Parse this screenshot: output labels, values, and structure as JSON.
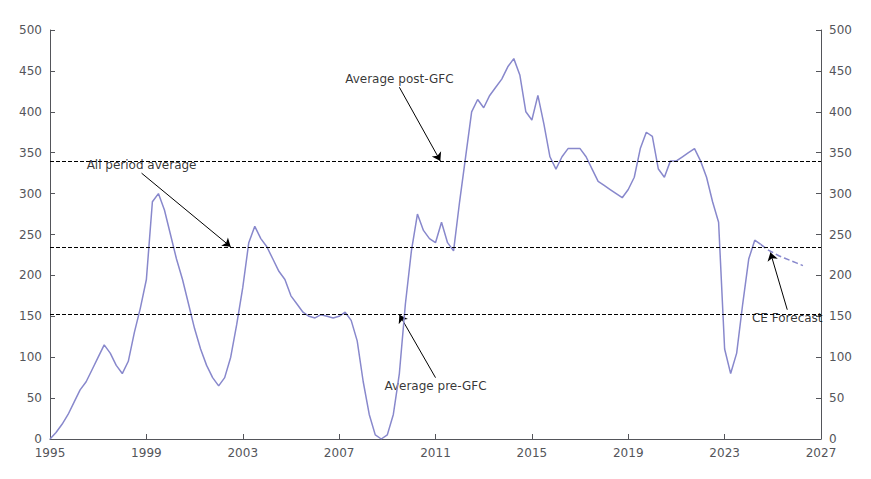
{
  "chart_data": {
    "type": "line",
    "background_color": "#ffffff",
    "xlim": [
      1995,
      2027
    ],
    "xticks": [
      1995,
      1999,
      2003,
      2007,
      2011,
      2015,
      2019,
      2023,
      2027
    ],
    "ylim": [
      0,
      500
    ],
    "yticks": [
      0,
      50,
      100,
      150,
      200,
      250,
      300,
      350,
      400,
      450,
      500
    ],
    "y2lim": [
      0,
      500
    ],
    "y2ticks": [
      0,
      50,
      100,
      150,
      200,
      250,
      300,
      350,
      400,
      450,
      500
    ],
    "grid": false,
    "series": [
      {
        "color": "#8888cc",
        "line_style": "solid",
        "x": [
          1995.0,
          1995.25,
          1995.5,
          1995.75,
          1996.0,
          1996.25,
          1996.5,
          1996.75,
          1997.0,
          1997.25,
          1997.5,
          1997.75,
          1998.0,
          1998.25,
          1998.5,
          1998.75,
          1999.0,
          1999.25,
          1999.5,
          1999.75,
          2000.0,
          2000.25,
          2000.5,
          2000.75,
          2001.0,
          2001.25,
          2001.5,
          2001.75,
          2002.0,
          2002.25,
          2002.5,
          2002.75,
          2003.0,
          2003.25,
          2003.5,
          2003.75,
          2004.0,
          2004.25,
          2004.5,
          2004.75,
          2005.0,
          2005.25,
          2005.5,
          2005.75,
          2006.0,
          2006.25,
          2006.5,
          2006.75,
          2007.0,
          2007.25,
          2007.5,
          2007.75,
          2008.0,
          2008.25,
          2008.5,
          2008.75,
          2009.0,
          2009.25,
          2009.5,
          2009.75,
          2010.0,
          2010.25,
          2010.5,
          2010.75,
          2011.0,
          2011.25,
          2011.5,
          2011.75,
          2012.0,
          2012.25,
          2012.5,
          2012.75,
          2013.0,
          2013.25,
          2013.5,
          2013.75,
          2014.0,
          2014.25,
          2014.5,
          2014.75,
          2015.0,
          2015.25,
          2015.5,
          2015.75,
          2016.0,
          2016.25,
          2016.5,
          2016.75,
          2017.0,
          2017.25,
          2017.5,
          2017.75,
          2018.0,
          2018.25,
          2018.5,
          2018.75,
          2019.0,
          2019.25,
          2019.5,
          2019.75,
          2020.0,
          2020.25,
          2020.5,
          2020.75,
          2021.0,
          2021.25,
          2021.5,
          2021.75,
          2022.0,
          2022.25,
          2022.5,
          2022.75,
          2023.0,
          2023.25,
          2023.5,
          2023.75,
          2024.0,
          2024.25,
          2024.5
        ],
        "values": [
          0,
          8,
          18,
          30,
          45,
          60,
          70,
          85,
          100,
          115,
          105,
          90,
          80,
          95,
          130,
          160,
          195,
          290,
          300,
          280,
          250,
          220,
          195,
          165,
          135,
          110,
          90,
          75,
          65,
          75,
          100,
          140,
          185,
          240,
          260,
          245,
          235,
          220,
          205,
          195,
          175,
          165,
          155,
          150,
          148,
          152,
          150,
          148,
          150,
          155,
          145,
          120,
          70,
          30,
          5,
          0,
          5,
          30,
          80,
          165,
          230,
          275,
          255,
          245,
          240,
          265,
          240,
          230,
          290,
          345,
          400,
          415,
          405,
          420,
          430,
          440,
          455,
          465,
          445,
          400,
          390,
          420,
          385,
          345,
          330,
          345,
          355,
          355,
          355,
          345,
          330,
          315,
          310,
          305,
          300,
          295,
          305,
          320,
          355,
          375,
          370,
          330,
          320,
          340,
          340,
          345,
          350,
          355,
          340,
          320,
          290,
          265,
          110,
          80,
          105,
          165,
          220,
          243,
          238
        ]
      },
      {
        "color": "#8888cc",
        "line_style": "dashed",
        "x": [
          2024.5,
          2024.75,
          2025.0,
          2025.25,
          2025.5,
          2025.75,
          2026.0,
          2026.25
        ],
        "values": [
          238,
          232,
          228,
          224,
          221,
          218,
          215,
          212
        ]
      }
    ],
    "reference_lines": [
      {
        "y": 152,
        "color": "#000000",
        "line_style": "dashed"
      },
      {
        "y": 340,
        "color": "#000000",
        "line_style": "dashed"
      },
      {
        "y": 235,
        "color": "#000000",
        "line_style": "dashed"
      }
    ],
    "annotations": [
      {
        "text": "Average post-GFC",
        "x": 2011.2,
        "y": 340,
        "text_x": 2009.5,
        "text_y": 430,
        "color": "#000000"
      },
      {
        "text": "All period average",
        "x": 2002.5,
        "y": 235,
        "text_x": 1998.8,
        "text_y": 325,
        "color": "#000000"
      },
      {
        "text": "Average pre-GFC",
        "x": 2009.5,
        "y": 152,
        "text_x": 2011.0,
        "text_y": 75,
        "color": "#000000"
      },
      {
        "text": "CE Forecast",
        "x": 2024.9,
        "y": 228,
        "text_x": 2025.6,
        "text_y": 158,
        "color": "#000000"
      }
    ]
  }
}
